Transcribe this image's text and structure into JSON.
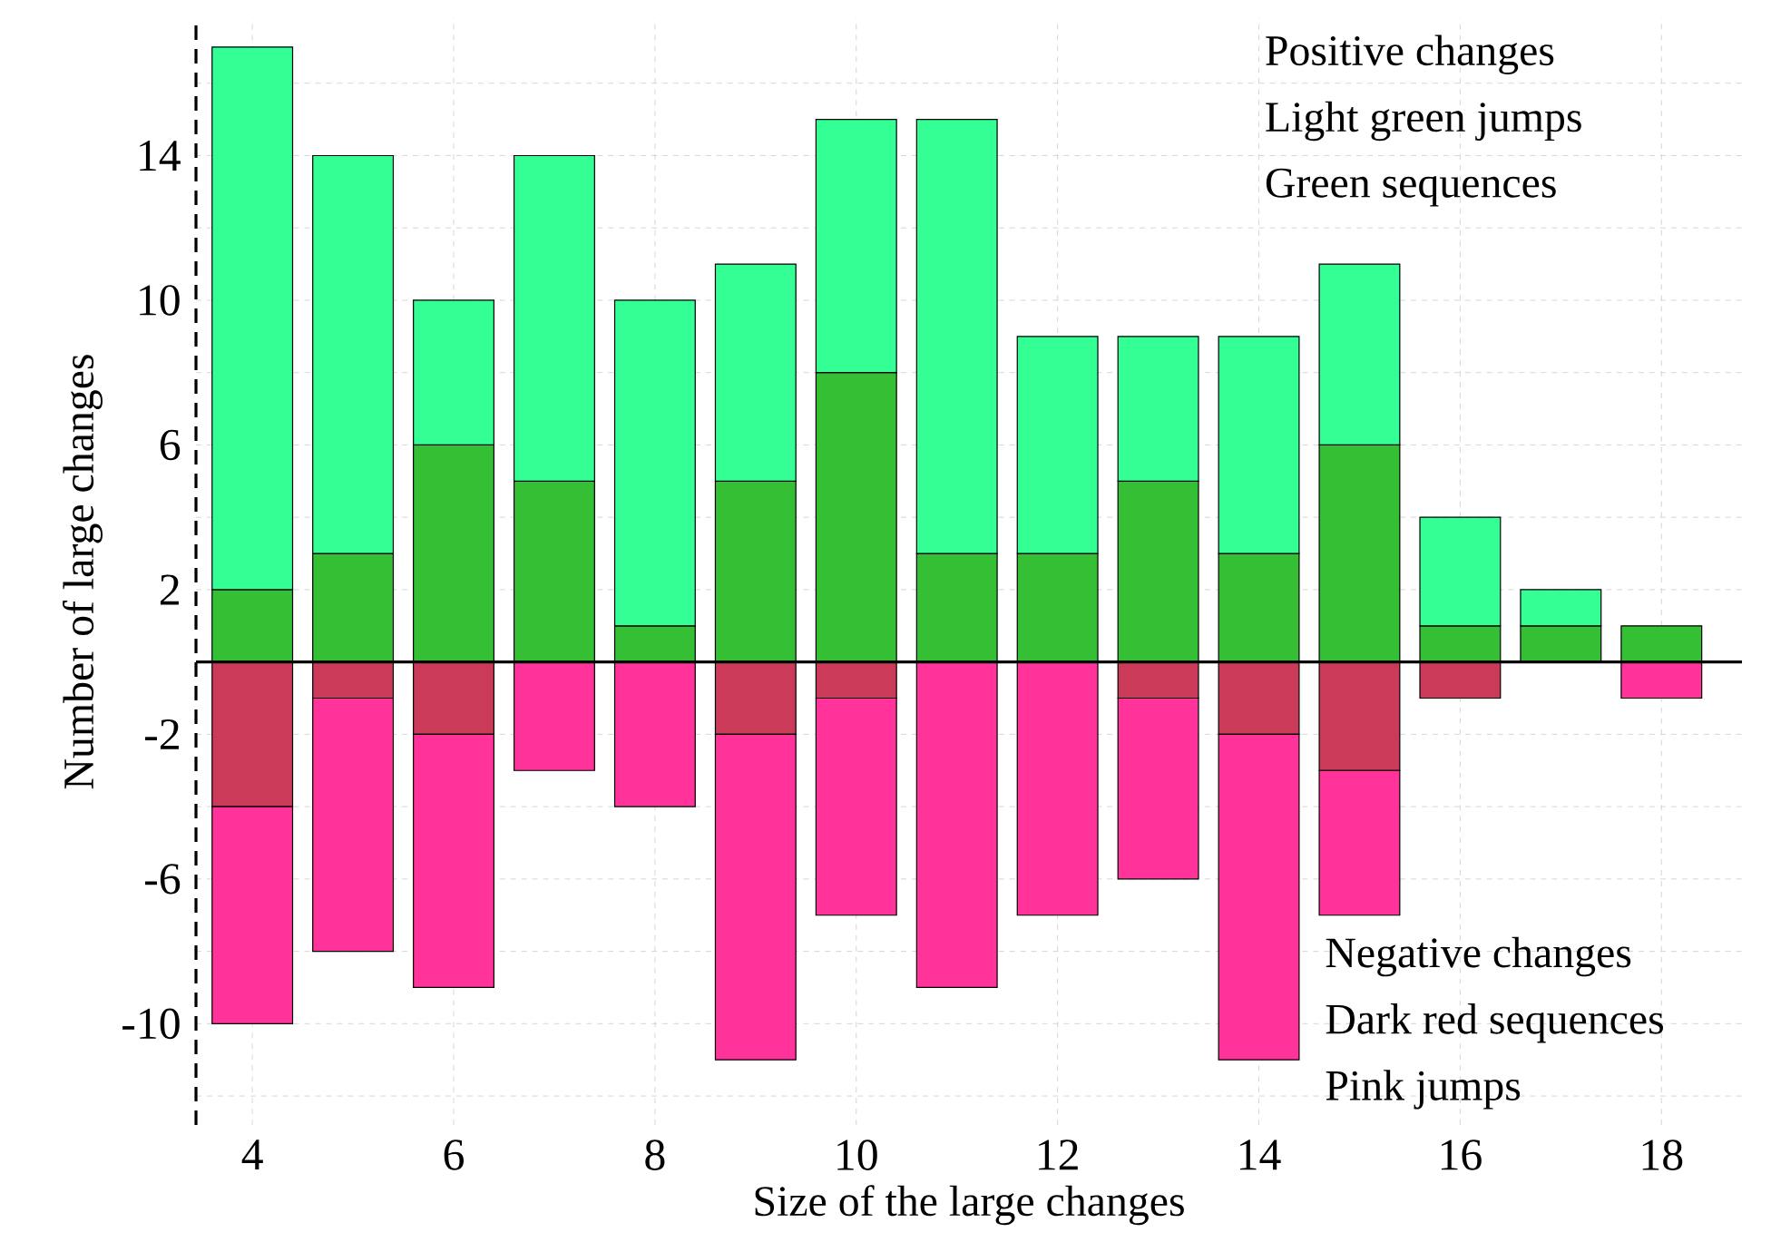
{
  "chart_data": {
    "type": "bar",
    "stacked": true,
    "xlabel": "Size of the large changes",
    "ylabel": "Number of large changes",
    "x": [
      4,
      5,
      6,
      7,
      8,
      9,
      10,
      11,
      12,
      13,
      14,
      15,
      16,
      17,
      18
    ],
    "series": [
      {
        "color": "#35bf35",
        "values": [
          2,
          3,
          6,
          5,
          1,
          5,
          8,
          3,
          3,
          5,
          3,
          6,
          1,
          1,
          1
        ]
      },
      {
        "color": "#33ff95",
        "values": [
          15,
          11,
          4,
          9,
          9,
          6,
          7,
          12,
          6,
          4,
          6,
          5,
          3,
          1,
          0
        ]
      },
      {
        "color": "#cc3a5a",
        "values": [
          -4,
          -1,
          -2,
          0,
          0,
          -2,
          -1,
          0,
          0,
          -1,
          -2,
          -3,
          -1,
          0,
          0
        ]
      },
      {
        "color": "#ff3399",
        "values": [
          -6,
          -7,
          -7,
          -3,
          -4,
          -9,
          -6,
          -9,
          -7,
          -5,
          -9,
          -4,
          0,
          0,
          -1
        ]
      }
    ],
    "annotations": [
      "Positive changes",
      "Light green jumps",
      "Green sequences",
      "Negative changes",
      "Dark red sequences",
      "Pink jumps"
    ],
    "xlim": [
      3.44,
      18.8
    ],
    "ylim": [
      -12.8,
      17.8
    ],
    "xticks": [
      4,
      6,
      8,
      10,
      12,
      14,
      16,
      18
    ],
    "yticks": [
      {
        "value": -12,
        "label": null
      },
      -10,
      {
        "value": -8,
        "label": null
      },
      -6,
      {
        "value": -4,
        "label": null
      },
      -2,
      {
        "value": 0,
        "label": null
      },
      2,
      {
        "value": 4,
        "label": null
      },
      6,
      {
        "value": 8,
        "label": null
      },
      10,
      {
        "value": 12,
        "label": null
      },
      14,
      {
        "value": 16,
        "label": null
      }
    ],
    "grid": true
  }
}
